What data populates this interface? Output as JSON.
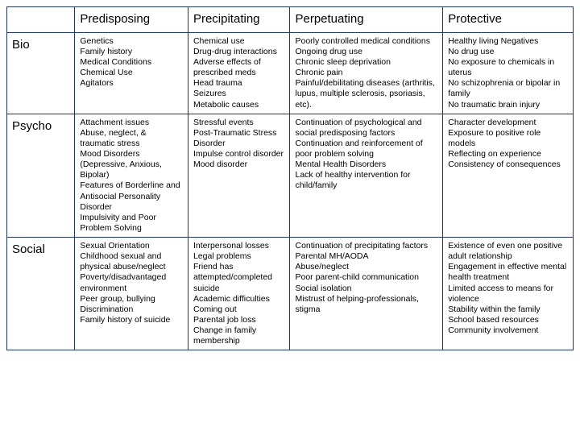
{
  "table": {
    "columns": [
      "",
      "Predisposing",
      "Precipitating",
      "Perpetuating",
      "Protective"
    ],
    "rowHeaders": [
      "Bio",
      "Psycho",
      "Social"
    ],
    "cells": [
      [
        "Genetics\nFamily history\nMedical Conditions\nChemical Use\nAgitators",
        "Chemical use\nDrug-drug interactions\nAdverse effects of prescribed meds\nHead trauma\nSeizures\nMetabolic causes",
        "Poorly controlled medical conditions\nOngoing drug use\nChronic sleep deprivation\nChronic pain\nPainful/debilitating diseases (arthritis, lupus, multiple sclerosis, psoriasis, etc).",
        "Healthy living Negatives\nNo drug use\nNo exposure to chemicals in uterus\nNo schizophrenia or bipolar in family\nNo traumatic brain injury"
      ],
      [
        "Attachment issues\nAbuse, neglect, & traumatic stress\nMood Disorders (Depressive, Anxious, Bipolar)\nFeatures of Borderline and Antisocial Personality Disorder\nImpulsivity and Poor Problem Solving",
        "Stressful events\nPost-Traumatic Stress Disorder\nImpulse control disorder\nMood disorder",
        "Continuation of psychological and social predisposing factors\nContinuation and reinforcement of poor problem solving\nMental Health Disorders\nLack of healthy intervention for child/family",
        "Character development\nExposure to positive role models\nReflecting on experience\nConsistency of consequences"
      ],
      [
        "Sexual Orientation\nChildhood sexual and physical abuse/neglect\nPoverty/disadvantaged environment\nPeer group, bullying\nDiscrimination\nFamily history of suicide",
        "Interpersonal losses\nLegal problems\nFriend has attempted/completed suicide\nAcademic difficulties\nComing out\nParental job loss\nChange in family membership",
        "Continuation of precipitating factors\nParental MH/AODA\nAbuse/neglect\nPoor parent-child communication\nSocial isolation\nMistrust of helping-professionals, stigma",
        "Existence of even one positive adult relationship\nEngagement in effective mental health treatment\nLimited access to means for violence\nStability within the family\nSchool based resources\nCommunity involvement"
      ]
    ],
    "styling": {
      "border_color": "#1f3864",
      "background_color": "#ffffff",
      "header_fontsize_pt": 15,
      "cell_fontsize_pt": 10.5,
      "text_color": "#000000",
      "font_family": "Arial"
    }
  }
}
